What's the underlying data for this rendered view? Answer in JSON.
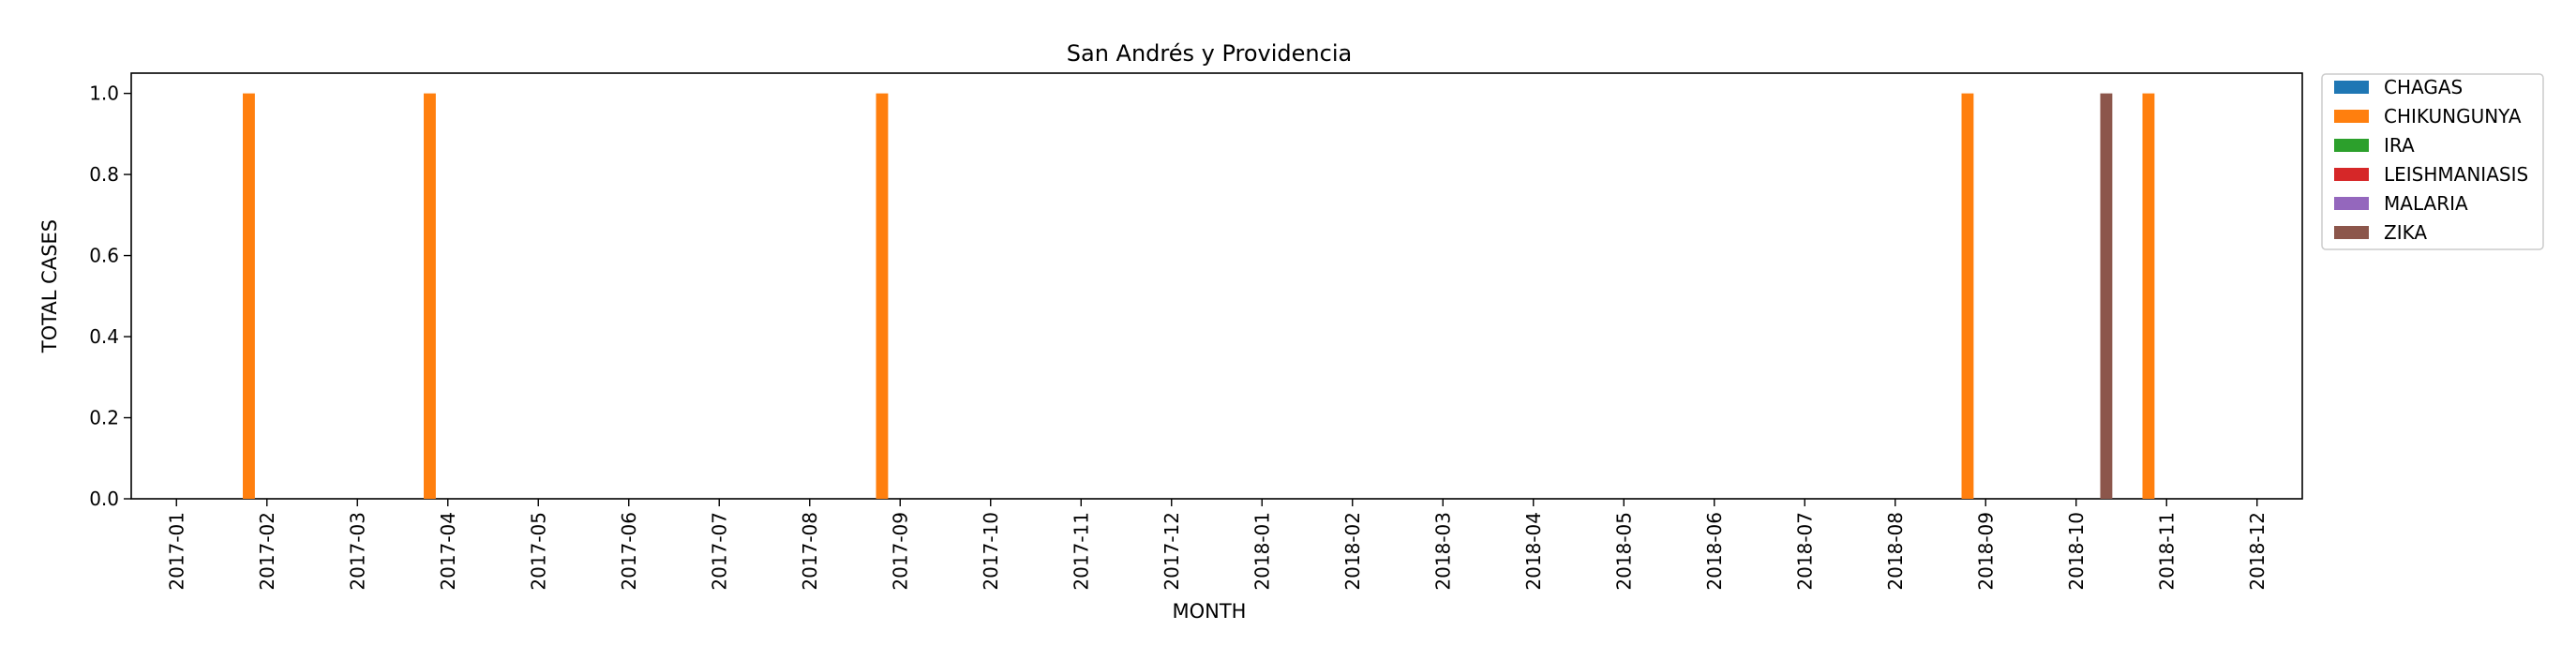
{
  "chart_data": {
    "type": "bar",
    "title": "San Andrés y Providencia",
    "xlabel": "MONTH",
    "ylabel": "TOTAL CASES",
    "ylim": [
      0,
      1.05
    ],
    "yticks": [
      "0.0",
      "0.2",
      "0.4",
      "0.6",
      "0.8",
      "1.0"
    ],
    "grid": false,
    "legend_position": "outside-top-right",
    "categories": [
      "2017-01",
      "2017-02",
      "2017-03",
      "2017-04",
      "2017-05",
      "2017-06",
      "2017-07",
      "2017-08",
      "2017-09",
      "2017-10",
      "2017-11",
      "2017-12",
      "2018-01",
      "2018-02",
      "2018-03",
      "2018-04",
      "2018-05",
      "2018-06",
      "2018-07",
      "2018-08",
      "2018-09",
      "2018-10",
      "2018-11",
      "2018-12"
    ],
    "series": [
      {
        "name": "CHAGAS",
        "color": "#1f77b4",
        "values": [
          0,
          0,
          0,
          0,
          0,
          0,
          0,
          0,
          0,
          0,
          0,
          0,
          0,
          0,
          0,
          0,
          0,
          0,
          0,
          0,
          0,
          0,
          0,
          0
        ]
      },
      {
        "name": "CHIKUNGUNYA",
        "color": "#ff7f0e",
        "values": [
          0,
          1,
          0,
          1,
          0,
          0,
          0,
          0,
          1,
          0,
          0,
          0,
          0,
          0,
          0,
          0,
          0,
          0,
          0,
          0,
          1,
          0,
          1,
          0
        ]
      },
      {
        "name": "IRA",
        "color": "#2ca02c",
        "values": [
          0,
          0,
          0,
          0,
          0,
          0,
          0,
          0,
          0,
          0,
          0,
          0,
          0,
          0,
          0,
          0,
          0,
          0,
          0,
          0,
          0,
          0,
          0,
          0
        ]
      },
      {
        "name": "LEISHMANIASIS",
        "color": "#d62728",
        "values": [
          0,
          0,
          0,
          0,
          0,
          0,
          0,
          0,
          0,
          0,
          0,
          0,
          0,
          0,
          0,
          0,
          0,
          0,
          0,
          0,
          0,
          0,
          0,
          0
        ]
      },
      {
        "name": "MALARIA",
        "color": "#9467bd",
        "values": [
          0,
          0,
          0,
          0,
          0,
          0,
          0,
          0,
          0,
          0,
          0,
          0,
          0,
          0,
          0,
          0,
          0,
          0,
          0,
          0,
          0,
          0,
          0,
          0
        ]
      },
      {
        "name": "ZIKA",
        "color": "#8c564b",
        "values": [
          0,
          0,
          0,
          0,
          0,
          0,
          0,
          0,
          0,
          0,
          0,
          0,
          0,
          0,
          0,
          0,
          0,
          0,
          0,
          0,
          0,
          1,
          0,
          0
        ]
      }
    ]
  }
}
